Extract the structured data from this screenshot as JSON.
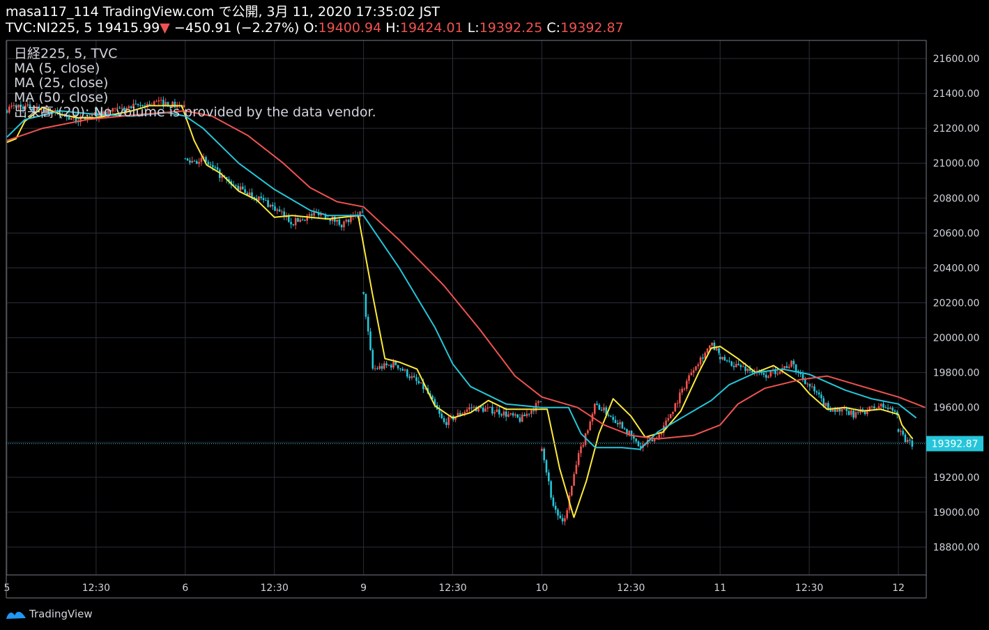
{
  "header": {
    "line1": "masa117_114 TradingView.com で公開, 3月 11, 2020 17:35:02 JST",
    "symbol": "TVC:NI225, 5",
    "last": "19415.99",
    "change": "−450.91 (−2.27%)",
    "o_label": "O:",
    "o_value": "19400.94",
    "h_label": "H:",
    "h_value": "19424.01",
    "l_label": "L:",
    "l_value": "19392.25",
    "c_label": "C:",
    "c_value": "19392.87"
  },
  "legend": {
    "line1": "日経225, 5, TVC",
    "line2": "MA (5, close)",
    "line3": "MA (25, close)",
    "line4": "MA (50, close)",
    "line5": "出来高 (20): No volume is provided by the data vendor."
  },
  "footer": {
    "brand": "TradingView"
  },
  "chart_data": {
    "type": "line",
    "ylim": [
      18660,
      21760
    ],
    "y_ticks": [
      21600,
      21400,
      21200,
      21000,
      20800,
      20600,
      20400,
      20200,
      20000,
      19800,
      19600,
      19400,
      19200,
      19000,
      18800
    ],
    "x_ticks": [
      "5",
      "12:30",
      "6",
      "12:30",
      "9",
      "12:30",
      "10",
      "12:30",
      "11",
      "12:30",
      "12"
    ],
    "last_price": 19392.87,
    "last_price_label": "19392.87",
    "grid": true,
    "colors": {
      "up": "#ef5350",
      "down": "#26c6da",
      "ma5": "#ffeb3b",
      "ma25": "#26c6da",
      "ma50": "#ef5350",
      "last": "#26c6da"
    },
    "sessions": [
      {
        "start": 0,
        "end": 1.0,
        "anchors": [
          [
            0,
            21310
          ],
          [
            0.05,
            21330
          ],
          [
            0.2,
            21310
          ],
          [
            0.4,
            21250
          ],
          [
            0.55,
            21290
          ],
          [
            0.7,
            21320
          ],
          [
            0.85,
            21350
          ],
          [
            1.0,
            21320
          ]
        ]
      },
      {
        "start": 1.0,
        "end": 2.0,
        "anchors": [
          [
            0,
            21010
          ],
          [
            0.1,
            21020
          ],
          [
            0.25,
            20880
          ],
          [
            0.45,
            20780
          ],
          [
            0.6,
            20660
          ],
          [
            0.75,
            20720
          ],
          [
            0.88,
            20650
          ],
          [
            1.0,
            20720
          ]
        ]
      },
      {
        "start": 2.0,
        "end": 3.0,
        "anchors": [
          [
            0,
            20240
          ],
          [
            0.05,
            19820
          ],
          [
            0.18,
            19850
          ],
          [
            0.35,
            19700
          ],
          [
            0.45,
            19510
          ],
          [
            0.6,
            19600
          ],
          [
            0.75,
            19580
          ],
          [
            0.88,
            19530
          ],
          [
            1.0,
            19640
          ]
        ]
      },
      {
        "start": 3.0,
        "end": 4.0,
        "anchors": [
          [
            0,
            19380
          ],
          [
            0.06,
            19050
          ],
          [
            0.12,
            18920
          ],
          [
            0.2,
            19300
          ],
          [
            0.3,
            19620
          ],
          [
            0.45,
            19500
          ],
          [
            0.55,
            19370
          ],
          [
            0.65,
            19430
          ],
          [
            0.75,
            19620
          ],
          [
            0.85,
            19830
          ],
          [
            0.95,
            19960
          ],
          [
            1.0,
            19900
          ]
        ]
      },
      {
        "start": 4.0,
        "end": 5.0,
        "anchors": [
          [
            0,
            19880
          ],
          [
            0.1,
            19840
          ],
          [
            0.25,
            19780
          ],
          [
            0.4,
            19850
          ],
          [
            0.6,
            19600
          ],
          [
            0.75,
            19560
          ],
          [
            0.9,
            19610
          ],
          [
            1.0,
            19570
          ]
        ]
      },
      {
        "start": 5.0,
        "end": 5.08,
        "anchors": [
          [
            0,
            19470
          ],
          [
            0.5,
            19410
          ],
          [
            1.0,
            19392
          ]
        ]
      }
    ],
    "series": [
      {
        "values": [
          [
            0.0,
            21120
          ],
          [
            0.05,
            21140
          ],
          [
            0.1,
            21240
          ],
          [
            0.2,
            21320
          ],
          [
            0.3,
            21280
          ],
          [
            0.4,
            21260
          ],
          [
            0.5,
            21260
          ],
          [
            0.6,
            21280
          ],
          [
            0.7,
            21300
          ],
          [
            0.8,
            21330
          ],
          [
            0.98,
            21330
          ],
          [
            1.05,
            21130
          ],
          [
            1.12,
            20990
          ],
          [
            1.2,
            20940
          ],
          [
            1.3,
            20840
          ],
          [
            1.4,
            20790
          ],
          [
            1.5,
            20690
          ],
          [
            1.6,
            20700
          ],
          [
            1.7,
            20690
          ],
          [
            1.8,
            20680
          ],
          [
            1.97,
            20700
          ],
          [
            2.05,
            20250
          ],
          [
            2.12,
            19880
          ],
          [
            2.2,
            19860
          ],
          [
            2.3,
            19820
          ],
          [
            2.4,
            19610
          ],
          [
            2.5,
            19540
          ],
          [
            2.6,
            19570
          ],
          [
            2.7,
            19640
          ],
          [
            2.8,
            19590
          ],
          [
            2.9,
            19590
          ],
          [
            3.03,
            19590
          ],
          [
            3.1,
            19250
          ],
          [
            3.18,
            18970
          ],
          [
            3.25,
            19180
          ],
          [
            3.32,
            19450
          ],
          [
            3.4,
            19650
          ],
          [
            3.5,
            19550
          ],
          [
            3.58,
            19430
          ],
          [
            3.68,
            19460
          ],
          [
            3.78,
            19580
          ],
          [
            3.88,
            19800
          ],
          [
            3.95,
            19940
          ],
          [
            4.0,
            19950
          ],
          [
            4.1,
            19880
          ],
          [
            4.2,
            19800
          ],
          [
            4.3,
            19840
          ],
          [
            4.45,
            19740
          ],
          [
            4.5,
            19680
          ],
          [
            4.6,
            19590
          ],
          [
            4.7,
            19600
          ],
          [
            4.8,
            19580
          ],
          [
            4.9,
            19590
          ],
          [
            5.0,
            19560
          ],
          [
            5.02,
            19500
          ],
          [
            5.08,
            19420
          ]
        ]
      },
      {
        "values": [
          [
            0.0,
            21150
          ],
          [
            0.1,
            21250
          ],
          [
            0.3,
            21300
          ],
          [
            0.5,
            21280
          ],
          [
            0.7,
            21270
          ],
          [
            0.9,
            21290
          ],
          [
            1.0,
            21270
          ],
          [
            1.1,
            21200
          ],
          [
            1.3,
            21000
          ],
          [
            1.5,
            20850
          ],
          [
            1.7,
            20730
          ],
          [
            1.8,
            20700
          ],
          [
            2.0,
            20700
          ],
          [
            2.2,
            20400
          ],
          [
            2.4,
            20060
          ],
          [
            2.5,
            19850
          ],
          [
            2.6,
            19720
          ],
          [
            2.8,
            19620
          ],
          [
            3.0,
            19600
          ],
          [
            3.15,
            19600
          ],
          [
            3.22,
            19450
          ],
          [
            3.3,
            19370
          ],
          [
            3.45,
            19370
          ],
          [
            3.55,
            19360
          ],
          [
            3.65,
            19460
          ],
          [
            3.8,
            19550
          ],
          [
            3.95,
            19640
          ],
          [
            4.05,
            19730
          ],
          [
            4.2,
            19800
          ],
          [
            4.35,
            19820
          ],
          [
            4.5,
            19790
          ],
          [
            4.7,
            19700
          ],
          [
            4.85,
            19650
          ],
          [
            5.0,
            19620
          ],
          [
            5.1,
            19540
          ]
        ]
      },
      {
        "values": [
          [
            0.0,
            21130
          ],
          [
            0.2,
            21200
          ],
          [
            0.45,
            21250
          ],
          [
            0.75,
            21280
          ],
          [
            1.0,
            21300
          ],
          [
            1.15,
            21270
          ],
          [
            1.35,
            21160
          ],
          [
            1.55,
            21000
          ],
          [
            1.7,
            20860
          ],
          [
            1.85,
            20780
          ],
          [
            2.0,
            20750
          ],
          [
            2.2,
            20560
          ],
          [
            2.45,
            20300
          ],
          [
            2.65,
            20050
          ],
          [
            2.85,
            19780
          ],
          [
            3.0,
            19660
          ],
          [
            3.2,
            19600
          ],
          [
            3.35,
            19500
          ],
          [
            3.5,
            19440
          ],
          [
            3.65,
            19420
          ],
          [
            3.85,
            19440
          ],
          [
            4.0,
            19500
          ],
          [
            4.1,
            19620
          ],
          [
            4.25,
            19710
          ],
          [
            4.45,
            19760
          ],
          [
            4.6,
            19780
          ],
          [
            4.8,
            19720
          ],
          [
            5.0,
            19660
          ],
          [
            5.15,
            19600
          ]
        ]
      }
    ]
  }
}
